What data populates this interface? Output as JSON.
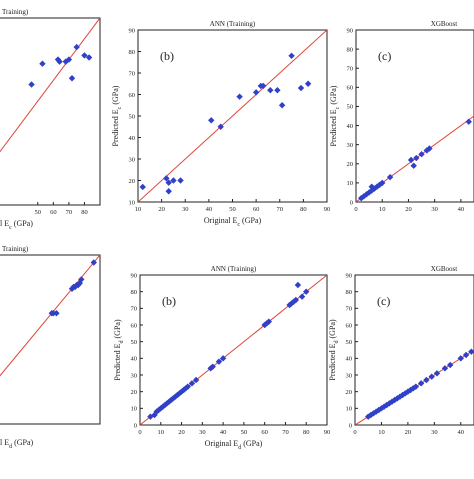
{
  "figure": {
    "colors": {
      "points": "#3140c8",
      "fit_line": "#e0453a",
      "axes": "#222222",
      "background": "#ffffff"
    }
  },
  "chart_data": [
    {
      "id": "top-left",
      "type": "scatter",
      "title": "Training)",
      "panel_letter": "",
      "xlabel": "l E₍c₎ (GPa)",
      "ylabel": "",
      "xlim": [
        0,
        90
      ],
      "ylim": [
        0,
        90
      ],
      "xticks": [
        50,
        60,
        70,
        80
      ],
      "yticks": [],
      "line": [
        [
          0,
          0
        ],
        [
          90,
          90
        ]
      ],
      "points": [
        [
          46,
          58
        ],
        [
          53,
          68
        ],
        [
          63,
          70
        ],
        [
          64,
          69
        ],
        [
          68,
          69
        ],
        [
          70,
          70
        ],
        [
          72,
          61
        ],
        [
          75,
          76
        ],
        [
          80,
          72
        ],
        [
          83,
          71
        ]
      ]
    },
    {
      "id": "top-middle",
      "type": "scatter",
      "title": "ANN (Training)",
      "panel_letter": "(b)",
      "xlabel": "Original E₍c₎ (GPa)",
      "ylabel": "Predicted E₍c₎ (GPa)",
      "xlim": [
        10,
        90
      ],
      "ylim": [
        10,
        90
      ],
      "xticks": [
        10,
        20,
        30,
        40,
        50,
        60,
        70,
        80,
        90
      ],
      "yticks": [
        10,
        20,
        30,
        40,
        50,
        60,
        70,
        80,
        90
      ],
      "line": [
        [
          10,
          10
        ],
        [
          90,
          90
        ]
      ],
      "points": [
        [
          12,
          17
        ],
        [
          22,
          21
        ],
        [
          23,
          15
        ],
        [
          23,
          19
        ],
        [
          25,
          20
        ],
        [
          28,
          20
        ],
        [
          41,
          48
        ],
        [
          45,
          45
        ],
        [
          53,
          59
        ],
        [
          60,
          61
        ],
        [
          62,
          64
        ],
        [
          63,
          64
        ],
        [
          66,
          62
        ],
        [
          69,
          62
        ],
        [
          71,
          55
        ],
        [
          75,
          78
        ],
        [
          79,
          63
        ],
        [
          82,
          65
        ]
      ]
    },
    {
      "id": "top-right",
      "type": "scatter",
      "title": "XGBoost",
      "panel_letter": "(c)",
      "xlabel": "",
      "ylabel": "Predicted E₍c₎ (GPa)",
      "xlim": [
        0,
        45
      ],
      "ylim": [
        0,
        90
      ],
      "xticks": [
        0,
        10,
        20,
        30,
        40
      ],
      "yticks": [
        0,
        10,
        20,
        30,
        40,
        50,
        60,
        70,
        80,
        90
      ],
      "line": [
        [
          0,
          0
        ],
        [
          45,
          45
        ]
      ],
      "points": [
        [
          2,
          2
        ],
        [
          3,
          3
        ],
        [
          4,
          4
        ],
        [
          5,
          5
        ],
        [
          6,
          6
        ],
        [
          6,
          8
        ],
        [
          7,
          7
        ],
        [
          8,
          8
        ],
        [
          9,
          9
        ],
        [
          10,
          10
        ],
        [
          13,
          13
        ],
        [
          21,
          22
        ],
        [
          22,
          19
        ],
        [
          23,
          23
        ],
        [
          25,
          25
        ],
        [
          27,
          27
        ],
        [
          28,
          28
        ],
        [
          43,
          42
        ]
      ]
    },
    {
      "id": "bottom-left",
      "type": "scatter",
      "title": "Training)",
      "panel_letter": "",
      "xlabel": "l E₍d₎ (GPa)",
      "ylabel": "",
      "xlim": [
        0,
        90
      ],
      "ylim": [
        0,
        90
      ],
      "xticks": [],
      "yticks": [],
      "line": [
        [
          0,
          0
        ],
        [
          90,
          90
        ]
      ],
      "points": [
        [
          59,
          59
        ],
        [
          60,
          59
        ],
        [
          62,
          59
        ],
        [
          72,
          72
        ],
        [
          73,
          73
        ],
        [
          74,
          73
        ],
        [
          75,
          74
        ],
        [
          76,
          74
        ],
        [
          77,
          75
        ],
        [
          78,
          77
        ],
        [
          86,
          86
        ]
      ]
    },
    {
      "id": "bottom-middle",
      "type": "scatter",
      "title": "ANN (Training)",
      "panel_letter": "(b)",
      "xlabel": "Original E₍d₎ (GPa)",
      "ylabel": "Predicted E₍d₎ (GPa)",
      "xlim": [
        0,
        90
      ],
      "ylim": [
        0,
        90
      ],
      "xticks": [
        0,
        10,
        20,
        30,
        40,
        50,
        60,
        70,
        80,
        90
      ],
      "yticks": [
        0,
        10,
        20,
        30,
        40,
        50,
        60,
        70,
        80,
        90
      ],
      "line": [
        [
          0,
          0
        ],
        [
          90,
          90
        ]
      ],
      "points": [
        [
          5,
          5
        ],
        [
          7,
          6
        ],
        [
          8,
          8
        ],
        [
          9,
          9
        ],
        [
          10,
          10
        ],
        [
          11,
          11
        ],
        [
          12,
          12
        ],
        [
          13,
          13
        ],
        [
          14,
          14
        ],
        [
          15,
          15
        ],
        [
          16,
          16
        ],
        [
          17,
          17
        ],
        [
          18,
          18
        ],
        [
          19,
          19
        ],
        [
          20,
          20
        ],
        [
          21,
          21
        ],
        [
          22,
          22
        ],
        [
          23,
          23
        ],
        [
          25,
          25
        ],
        [
          27,
          27
        ],
        [
          34,
          34
        ],
        [
          35,
          35
        ],
        [
          38,
          38
        ],
        [
          40,
          40
        ],
        [
          60,
          60
        ],
        [
          61,
          61
        ],
        [
          62,
          62
        ],
        [
          72,
          72
        ],
        [
          73,
          73
        ],
        [
          74,
          74
        ],
        [
          75,
          75
        ],
        [
          76,
          84
        ],
        [
          78,
          77
        ],
        [
          80,
          80
        ]
      ]
    },
    {
      "id": "bottom-right",
      "type": "scatter",
      "title": "XGBoost",
      "panel_letter": "(c)",
      "xlabel": "",
      "ylabel": "Predicted E₍d₎ (GPa)",
      "xlim": [
        0,
        45
      ],
      "ylim": [
        0,
        90
      ],
      "xticks": [
        0,
        10,
        20,
        30,
        40
      ],
      "yticks": [
        0,
        10,
        20,
        30,
        40,
        50,
        60,
        70,
        80,
        90
      ],
      "line": [
        [
          0,
          0
        ],
        [
          45,
          45
        ]
      ],
      "points": [
        [
          5,
          5
        ],
        [
          6,
          6
        ],
        [
          7,
          7
        ],
        [
          8,
          8
        ],
        [
          9,
          9
        ],
        [
          10,
          10
        ],
        [
          11,
          11
        ],
        [
          12,
          12
        ],
        [
          13,
          13
        ],
        [
          14,
          14
        ],
        [
          15,
          15
        ],
        [
          16,
          16
        ],
        [
          17,
          17
        ],
        [
          18,
          18
        ],
        [
          19,
          19
        ],
        [
          20,
          20
        ],
        [
          21,
          21
        ],
        [
          22,
          22
        ],
        [
          23,
          23
        ],
        [
          25,
          25
        ],
        [
          27,
          27
        ],
        [
          29,
          29
        ],
        [
          31,
          31
        ],
        [
          34,
          34
        ],
        [
          36,
          36
        ],
        [
          40,
          40
        ],
        [
          42,
          42
        ],
        [
          44,
          44
        ]
      ]
    }
  ]
}
